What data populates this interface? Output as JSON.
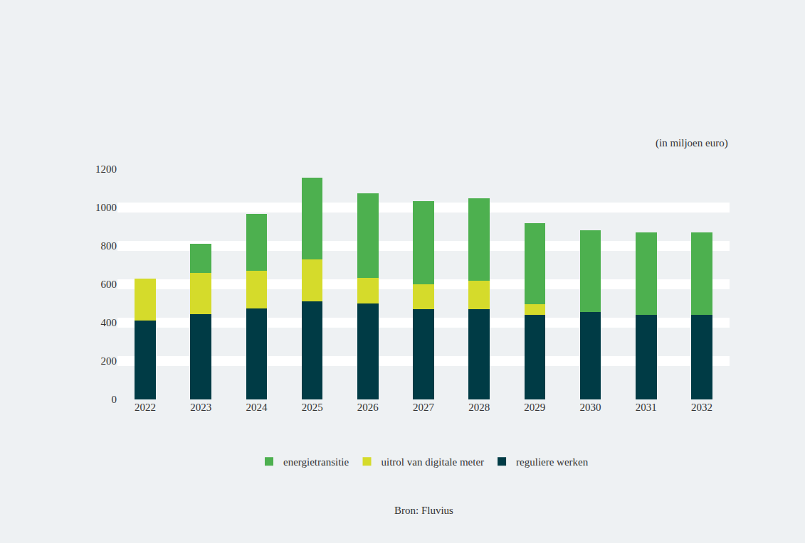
{
  "chart_data": {
    "type": "bar",
    "stacked": true,
    "ylabel": "(in miljoen euro)",
    "source": "Bron: Fluvius",
    "categories": [
      "2022",
      "2023",
      "2024",
      "2025",
      "2026",
      "2027",
      "2028",
      "2029",
      "2030",
      "2031",
      "2032"
    ],
    "series": [
      {
        "name": "reguliere werken",
        "color": "#003b45",
        "values": [
          410,
          445,
          475,
          510,
          500,
          470,
          470,
          440,
          455,
          440,
          440
        ]
      },
      {
        "name": "uitrol van digitale meter",
        "color": "#d5db2b",
        "values": [
          220,
          215,
          195,
          220,
          135,
          130,
          150,
          55,
          0,
          0,
          0
        ]
      },
      {
        "name": "energietransitie",
        "color": "#4db04f",
        "values": [
          0,
          150,
          295,
          425,
          440,
          435,
          430,
          425,
          425,
          430,
          430
        ]
      }
    ],
    "ylim": [
      0,
      1200
    ],
    "yticks": [
      0,
      200,
      400,
      600,
      800,
      1000,
      1200
    ],
    "grid": true,
    "legend": "bottom"
  }
}
